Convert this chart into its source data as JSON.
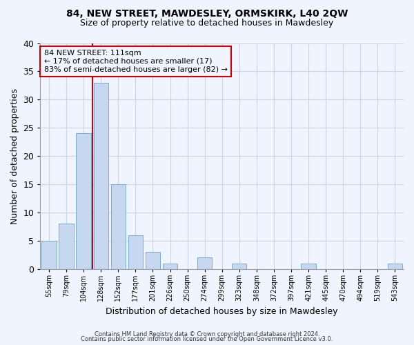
{
  "title": "84, NEW STREET, MAWDESLEY, ORMSKIRK, L40 2QW",
  "subtitle": "Size of property relative to detached houses in Mawdesley",
  "xlabel": "Distribution of detached houses by size in Mawdesley",
  "ylabel": "Number of detached properties",
  "categories": [
    "55sqm",
    "79sqm",
    "104sqm",
    "128sqm",
    "152sqm",
    "177sqm",
    "201sqm",
    "226sqm",
    "250sqm",
    "274sqm",
    "299sqm",
    "323sqm",
    "348sqm",
    "372sqm",
    "397sqm",
    "421sqm",
    "445sqm",
    "470sqm",
    "494sqm",
    "519sqm",
    "543sqm"
  ],
  "values": [
    5,
    8,
    24,
    33,
    15,
    6,
    3,
    1,
    0,
    2,
    0,
    1,
    0,
    0,
    0,
    1,
    0,
    0,
    0,
    0,
    1
  ],
  "bar_color": "#c5d8ef",
  "bar_edge_color": "#7aadd4",
  "grid_color": "#c8d4e8",
  "vline_x": 2.5,
  "vline_color": "#cc0000",
  "annotation_text": "84 NEW STREET: 111sqm\n← 17% of detached houses are smaller (17)\n83% of semi-detached houses are larger (82) →",
  "annotation_box_color": "#cc0000",
  "ylim": [
    0,
    40
  ],
  "yticks": [
    0,
    5,
    10,
    15,
    20,
    25,
    30,
    35,
    40
  ],
  "footnote1": "Contains HM Land Registry data © Crown copyright and database right 2024.",
  "footnote2": "Contains public sector information licensed under the Open Government Licence v3.0.",
  "bg_color": "#f0f4ff",
  "title_fontsize": 10,
  "subtitle_fontsize": 9,
  "annot_fontsize": 8
}
